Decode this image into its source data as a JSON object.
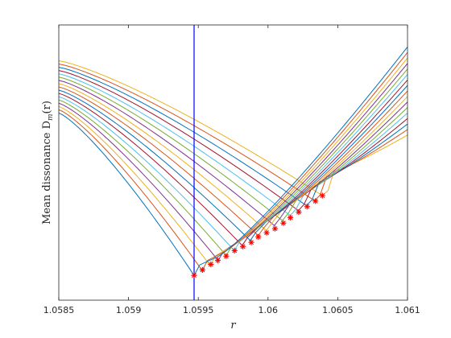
{
  "chart_data": {
    "type": "line",
    "xlabel": "r",
    "ylabel": "Mean dissonance D",
    "ylabel_sub": "m",
    "ylabel_suffix": "(r)",
    "xlim": [
      1.0585,
      1.061
    ],
    "ylim": [
      0,
      100
    ],
    "xticks": [
      "1.0585",
      "1.059",
      "1.0595",
      "1.06",
      "1.0605",
      "1.061"
    ],
    "xtick_values": [
      1.0585,
      1.059,
      1.0595,
      1.06,
      1.0605,
      1.061
    ],
    "vline_x": 1.05947,
    "vline_color": "#0000ff",
    "series_colors": [
      "#0072bd",
      "#d95319",
      "#edb120",
      "#7e2f8e",
      "#77ac30",
      "#4dbeee",
      "#a2142f"
    ],
    "family": {
      "count": 17,
      "start_x_first": 1.05947,
      "start_x_last": 1.06039,
      "start_y_first": 9,
      "start_y_last": 38,
      "left_y_first": 68,
      "left_y_last": 87,
      "plateau_end_x_last": 1.0604,
      "right_y_first": 92,
      "right_y_last": 60
    },
    "markers": {
      "symbol": "*",
      "color": "#ff0000",
      "x": [
        1.05947,
        1.05953,
        1.05959,
        1.05964,
        1.0597,
        1.05976,
        1.05982,
        1.05988,
        1.05993,
        1.05999,
        1.06005,
        1.06011,
        1.06016,
        1.06022,
        1.06028,
        1.06034,
        1.06039
      ],
      "y": [
        9,
        11,
        13,
        14.5,
        16,
        18,
        19.5,
        21,
        23,
        24.5,
        26,
        28,
        30,
        32,
        34,
        36,
        38
      ]
    }
  }
}
